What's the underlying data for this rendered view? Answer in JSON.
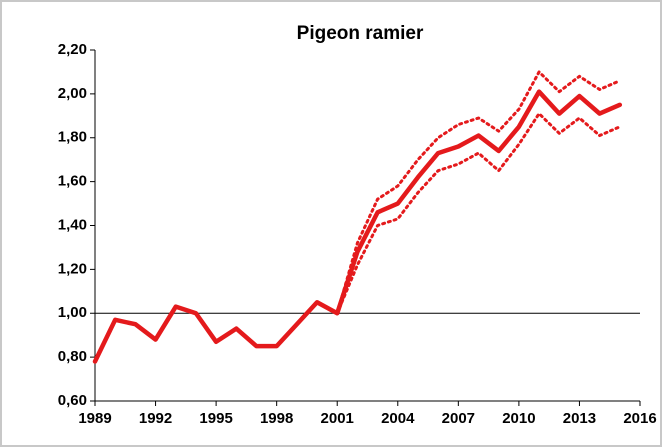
{
  "chart_data": {
    "type": "line",
    "title": "Pigeon ramier",
    "x": [
      1989,
      1990,
      1991,
      1992,
      1993,
      1994,
      1995,
      1996,
      1997,
      1998,
      1999,
      2000,
      2001,
      2002,
      2003,
      2004,
      2005,
      2006,
      2007,
      2008,
      2009,
      2010,
      2011,
      2012,
      2013,
      2014,
      2015
    ],
    "series": [
      {
        "color": "#e41a1c",
        "style": "solid",
        "values": [
          0.78,
          0.97,
          0.95,
          0.88,
          1.03,
          1.0,
          0.87,
          0.93,
          0.85,
          0.85,
          0.95,
          1.05,
          1.0,
          1.28,
          1.46,
          1.5,
          1.62,
          1.73,
          1.76,
          1.81,
          1.74,
          1.85,
          2.01,
          1.91,
          1.99,
          1.91,
          1.95
        ]
      },
      {
        "color": "#e41a1c",
        "style": "dotted",
        "values": [
          null,
          null,
          null,
          null,
          null,
          null,
          null,
          null,
          null,
          null,
          null,
          null,
          1.0,
          1.32,
          1.52,
          1.58,
          1.7,
          1.8,
          1.86,
          1.89,
          1.83,
          1.93,
          2.1,
          2.01,
          2.08,
          2.02,
          2.06
        ]
      },
      {
        "color": "#e41a1c",
        "style": "dotted",
        "values": [
          null,
          null,
          null,
          null,
          null,
          null,
          null,
          null,
          null,
          null,
          null,
          null,
          1.0,
          1.22,
          1.4,
          1.43,
          1.55,
          1.65,
          1.68,
          1.73,
          1.65,
          1.77,
          1.91,
          1.82,
          1.89,
          1.81,
          1.85
        ]
      }
    ],
    "xlim": [
      1989,
      2016
    ],
    "xticks": [
      1989,
      1992,
      1995,
      1998,
      2001,
      2004,
      2007,
      2010,
      2013,
      2016
    ],
    "ylim": [
      0.6,
      2.2
    ],
    "yticks": [
      {
        "value": 0.6,
        "label": "0,60"
      },
      {
        "value": 0.8,
        "label": "0,80"
      },
      {
        "value": 1.0,
        "label": "1,00"
      },
      {
        "value": 1.2,
        "label": "1,20"
      },
      {
        "value": 1.4,
        "label": "1,40"
      },
      {
        "value": 1.6,
        "label": "1,60"
      },
      {
        "value": 1.8,
        "label": "1,80"
      },
      {
        "value": 2.0,
        "label": "2,00"
      },
      {
        "value": 2.2,
        "label": "2,20"
      }
    ],
    "reference_line": 1.0,
    "grid": false
  }
}
